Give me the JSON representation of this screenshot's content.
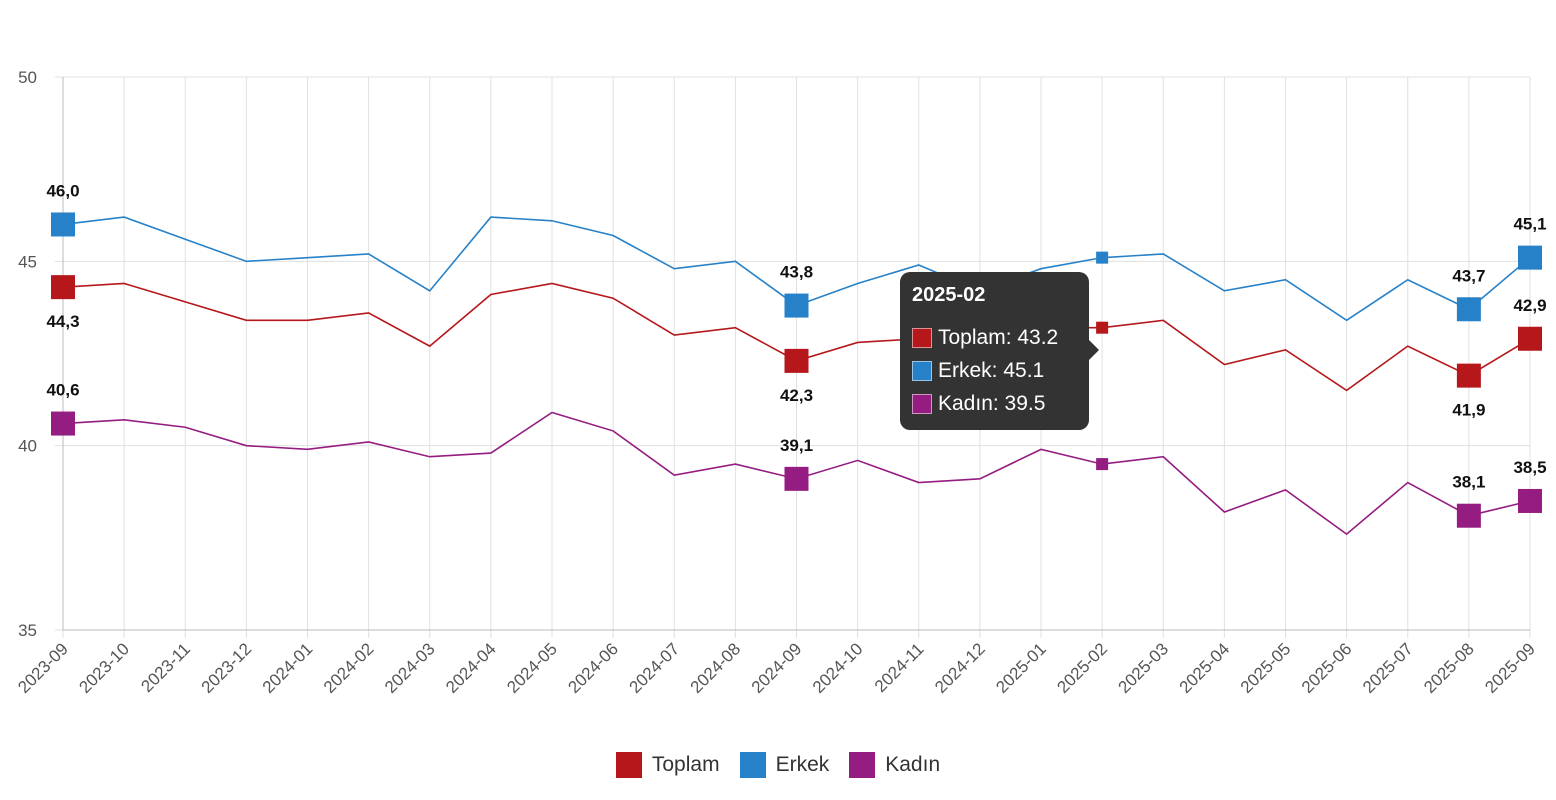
{
  "chart_data": {
    "type": "line",
    "x": [
      "2023-09",
      "2023-10",
      "2023-11",
      "2023-12",
      "2024-01",
      "2024-02",
      "2024-03",
      "2024-04",
      "2024-05",
      "2024-06",
      "2024-07",
      "2024-08",
      "2024-09",
      "2024-10",
      "2024-11",
      "2024-12",
      "2025-01",
      "2025-02",
      "2025-03",
      "2025-04",
      "2025-05",
      "2025-06",
      "2025-07",
      "2025-08",
      "2025-09"
    ],
    "ylim": [
      35,
      50
    ],
    "yticks": [
      "35",
      "40",
      "45",
      "50"
    ],
    "grid": true,
    "legend_placement": "bottom",
    "series": [
      {
        "name": "Toplam",
        "color": "#b5171a",
        "values": [
          44.3,
          44.4,
          43.9,
          43.4,
          43.4,
          43.6,
          42.7,
          44.1,
          44.4,
          44.0,
          43.0,
          43.2,
          42.3,
          42.8,
          42.9,
          42.4,
          43.2,
          43.2,
          43.4,
          42.2,
          42.6,
          41.5,
          42.7,
          41.9,
          42.9
        ],
        "labels": [
          {
            "i": 0,
            "text": "44,3",
            "pos": "below"
          },
          {
            "i": 12,
            "text": "42,3",
            "pos": "below"
          },
          {
            "i": 23,
            "text": "41,9",
            "pos": "below"
          },
          {
            "i": 24,
            "text": "42,9",
            "pos": "above"
          }
        ]
      },
      {
        "name": "Erkek",
        "color": "#2681c8",
        "values": [
          46.0,
          46.2,
          45.6,
          45.0,
          45.1,
          45.2,
          44.2,
          46.2,
          46.1,
          45.7,
          44.8,
          45.0,
          43.8,
          44.4,
          44.9,
          44.2,
          44.8,
          45.1,
          45.2,
          44.2,
          44.5,
          43.4,
          44.5,
          43.7,
          45.1
        ],
        "labels": [
          {
            "i": 0,
            "text": "46,0",
            "pos": "above"
          },
          {
            "i": 12,
            "text": "43,8",
            "pos": "above"
          },
          {
            "i": 23,
            "text": "43,7",
            "pos": "above"
          },
          {
            "i": 24,
            "text": "45,1",
            "pos": "above"
          }
        ]
      },
      {
        "name": "Kadın",
        "color": "#951c80",
        "values": [
          40.6,
          40.7,
          40.5,
          40.0,
          39.9,
          40.1,
          39.7,
          39.8,
          40.9,
          40.4,
          39.2,
          39.5,
          39.1,
          39.6,
          39.0,
          39.1,
          39.9,
          39.5,
          39.7,
          38.2,
          38.8,
          37.6,
          39.0,
          38.1,
          38.5
        ],
        "labels": [
          {
            "i": 0,
            "text": "40,6",
            "pos": "above"
          },
          {
            "i": 12,
            "text": "39,1",
            "pos": "above"
          },
          {
            "i": 23,
            "text": "38,1",
            "pos": "above"
          },
          {
            "i": 24,
            "text": "38,5",
            "pos": "above"
          }
        ]
      }
    ],
    "hover_index": 17
  },
  "tooltip": {
    "title": "2025-02",
    "rows": [
      "Toplam: 43.2",
      "Erkek: 45.1",
      "Kadın: 39.5"
    ]
  }
}
